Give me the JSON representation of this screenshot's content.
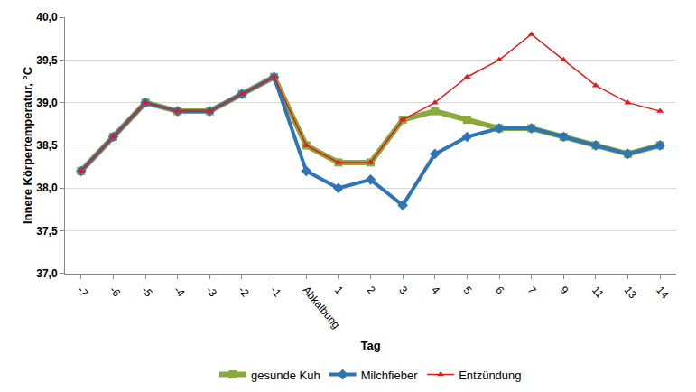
{
  "chart_data": {
    "type": "line",
    "x_label": "Tag",
    "y_label": "Innere Körpertemperatur, °C",
    "categories": [
      "-7",
      "-6",
      "-5",
      "-4",
      "-3",
      "-2",
      "-1",
      "Abkalbung",
      "1",
      "2",
      "3",
      "4",
      "5",
      "6",
      "7",
      "9",
      "11",
      "13",
      "14"
    ],
    "series": [
      {
        "name": "gesunde Kuh",
        "color": "#8aaa3e",
        "marker": "square",
        "values": [
          38.2,
          38.6,
          39.0,
          38.9,
          38.9,
          39.1,
          39.3,
          38.5,
          38.3,
          38.3,
          38.8,
          38.9,
          38.8,
          38.7,
          38.7,
          38.6,
          38.5,
          38.4,
          38.5
        ]
      },
      {
        "name": "Milchfieber",
        "color": "#2e75b6",
        "marker": "diamond",
        "values": [
          38.2,
          38.6,
          39.0,
          38.9,
          38.9,
          39.1,
          39.3,
          38.2,
          38.0,
          38.1,
          37.8,
          38.4,
          38.6,
          38.7,
          38.7,
          38.6,
          38.5,
          38.4,
          38.5
        ]
      },
      {
        "name": "Entzündung",
        "color": "#e31a1c",
        "marker": "triangle",
        "values": [
          38.2,
          38.6,
          39.0,
          38.9,
          38.9,
          39.1,
          39.3,
          38.5,
          38.3,
          38.3,
          38.8,
          39.0,
          39.3,
          39.5,
          39.8,
          39.5,
          39.2,
          39.0,
          38.9
        ]
      }
    ],
    "ylim": [
      37.0,
      40.0
    ],
    "yticks": [
      {
        "value": 37.0,
        "label": "37,0"
      },
      {
        "value": 37.5,
        "label": "37,5"
      },
      {
        "value": 38.0,
        "label": "38,0"
      },
      {
        "value": 38.5,
        "label": "38,5"
      },
      {
        "value": 39.0,
        "label": "39,0"
      },
      {
        "value": 39.5,
        "label": "39,5"
      },
      {
        "value": 40.0,
        "label": "40,0"
      }
    ],
    "grid": true,
    "legend": "bottom"
  }
}
